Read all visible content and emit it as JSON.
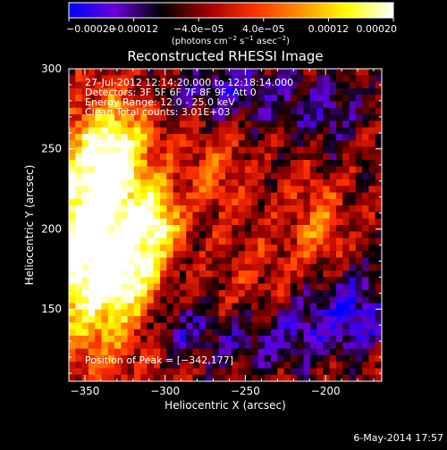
{
  "chart_data": {
    "type": "heatmap",
    "title": "Reconstructed RHESSI Image",
    "xlabel": "Heliocentric X (arcsec)",
    "ylabel": "Heliocentric Y (arcsec)",
    "xlim": [
      -360,
      -165
    ],
    "ylim": [
      105,
      300
    ],
    "x_ticks": [
      -350,
      -300,
      -250,
      -200
    ],
    "y_ticks": [
      150,
      200,
      250,
      300
    ],
    "x_tick_labels": [
      "−350",
      "−300",
      "−250",
      "−200"
    ],
    "y_tick_labels": [
      "150",
      "200",
      "250",
      "300"
    ],
    "colorbar": {
      "min": -0.0002,
      "max": 0.0002,
      "ticks": [
        -0.0002,
        -0.00012,
        -4e-05,
        4e-05,
        0.00012,
        0.0002
      ],
      "tick_labels": [
        "−0.00020",
        "−0.00012",
        "−4.0e−05",
        "4.0e−05",
        "0.00012",
        "0.00020"
      ],
      "unit_label": "(photons cm",
      "unit_exp1": "−2",
      "unit_mid": " s",
      "unit_exp2": "−1",
      "unit_mid2": " asec",
      "unit_exp3": "−2",
      "unit_end": ")",
      "colorscale": [
        "#0000ff",
        "#6a00d8",
        "#000000",
        "#a00000",
        "#ff3000",
        "#ff9000",
        "#ffff00",
        "#ffffff"
      ]
    },
    "annotations": [
      "27-Jul-2012 12:14:20.000 to 12:18:14.000",
      "Detectors: 3F 5F 6F 7F 8F 9F, Att 0",
      "Energy Range: 12.0 - 25.0 keV",
      "Clean    Total counts: 3.01E+03"
    ],
    "peak_label": "Position of Peak = [−342,177]",
    "peak": [
      -342,
      177
    ],
    "sources": [
      {
        "x": -345,
        "y": 190,
        "sx": 22,
        "sy": 45,
        "amp": 0.0003
      },
      {
        "x": -330,
        "y": 250,
        "sx": 16,
        "sy": 22,
        "amp": 0.00017
      },
      {
        "x": -305,
        "y": 205,
        "sx": 10,
        "sy": 14,
        "amp": 0.00018
      },
      {
        "x": -318,
        "y": 175,
        "sx": 12,
        "sy": 18,
        "amp": 0.00012
      },
      {
        "x": -270,
        "y": 238,
        "sx": 14,
        "sy": 20,
        "amp": 8e-05
      },
      {
        "x": -205,
        "y": 200,
        "sx": 12,
        "sy": 30,
        "amp": 9e-05
      },
      {
        "x": -240,
        "y": 170,
        "sx": 18,
        "sy": 24,
        "amp": 4e-05
      },
      {
        "x": -190,
        "y": 150,
        "sx": 22,
        "sy": 18,
        "amp": -0.00014
      },
      {
        "x": -240,
        "y": 130,
        "sx": 28,
        "sy": 12,
        "amp": -9e-05
      },
      {
        "x": -260,
        "y": 285,
        "sx": 30,
        "sy": 14,
        "amp": -0.0001
      },
      {
        "x": -200,
        "y": 270,
        "sx": 16,
        "sy": 20,
        "amp": -8e-05
      },
      {
        "x": -290,
        "y": 140,
        "sx": 14,
        "sy": 14,
        "amp": -7e-05
      }
    ]
  },
  "footer": {
    "date": "6-May-2014 17:57"
  }
}
